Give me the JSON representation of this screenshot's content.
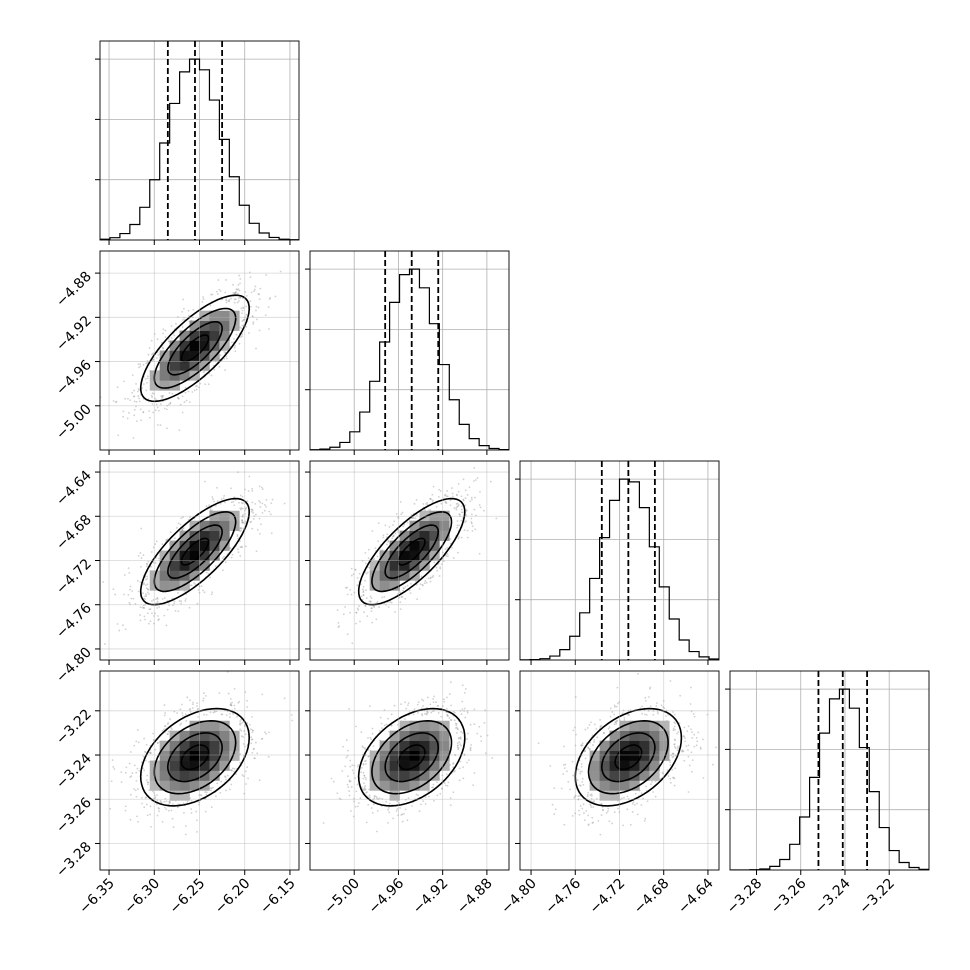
{
  "chart_data": {
    "type": "corner",
    "parameters": [
      {
        "range": [
          -6.36,
          -6.14
        ],
        "ticks": [
          -6.35,
          -6.3,
          -6.25,
          -6.2,
          -6.15
        ],
        "tick_labels": [
          "−6.35",
          "−6.30",
          "−6.25",
          "−6.20",
          "−6.15"
        ],
        "mean": -6.255,
        "sigma": 0.03,
        "quantiles": [
          -6.285,
          -6.255,
          -6.225
        ]
      },
      {
        "range": [
          -5.04,
          -4.86
        ],
        "ticks": [
          -5.0,
          -4.96,
          -4.92,
          -4.88
        ],
        "tick_labels": [
          "−5.00",
          "−4.96",
          "−4.92",
          "−4.88"
        ],
        "mean": -4.948,
        "sigma": 0.024,
        "quantiles": [
          -4.972,
          -4.948,
          -4.924
        ]
      },
      {
        "range": [
          -4.81,
          -4.63
        ],
        "ticks": [
          -4.8,
          -4.76,
          -4.72,
          -4.68,
          -4.64
        ],
        "tick_labels": [
          "−4.80",
          "−4.76",
          "−4.72",
          "−4.68",
          "−4.64"
        ],
        "mean": -4.712,
        "sigma": 0.024,
        "quantiles": [
          -4.736,
          -4.712,
          -4.688
        ]
      },
      {
        "range": [
          -3.292,
          -3.202
        ],
        "ticks": [
          -3.28,
          -3.26,
          -3.24,
          -3.22
        ],
        "tick_labels": [
          "−3.28",
          "−3.26",
          "−3.24",
          "−3.22"
        ],
        "mean": -3.241,
        "sigma": 0.011,
        "quantiles": [
          -3.252,
          -3.241,
          -3.23
        ]
      }
    ],
    "correlations": {
      "1-0": 0.75,
      "2-0": 0.75,
      "2-1": 0.75,
      "3-0": 0.4,
      "3-1": 0.4,
      "3-2": 0.4
    },
    "histogram_bins": 20,
    "contour_levels": [
      "0.5σ",
      "1σ",
      "1.5σ",
      "2σ"
    ],
    "grid": true
  }
}
